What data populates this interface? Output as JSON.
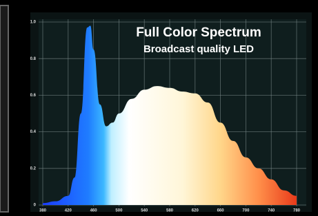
{
  "chart_data": {
    "type": "area",
    "title": "Full Color Spectrum",
    "subtitle": "Broadcast quality LED",
    "x": [
      380,
      400,
      420,
      430,
      440,
      450,
      455,
      460,
      470,
      480,
      490,
      500,
      520,
      540,
      560,
      580,
      600,
      620,
      640,
      660,
      680,
      700,
      720,
      740,
      760,
      780
    ],
    "values": [
      0.01,
      0.02,
      0.05,
      0.15,
      0.5,
      0.97,
      0.98,
      0.85,
      0.55,
      0.43,
      0.45,
      0.5,
      0.58,
      0.63,
      0.65,
      0.64,
      0.62,
      0.61,
      0.56,
      0.45,
      0.35,
      0.26,
      0.2,
      0.14,
      0.08,
      0.05
    ],
    "xlim": [
      380,
      780
    ],
    "xticks": [
      380,
      420,
      460,
      500,
      540,
      580,
      620,
      660,
      700,
      740,
      780
    ],
    "ylim": [
      0,
      1
    ],
    "yticks": [
      0,
      0.2,
      0.4,
      0.6,
      {
        "value": 0.8,
        "label": "0.8"
      },
      {
        "value": 1,
        "label": "1.0"
      }
    ],
    "grid": true
  }
}
